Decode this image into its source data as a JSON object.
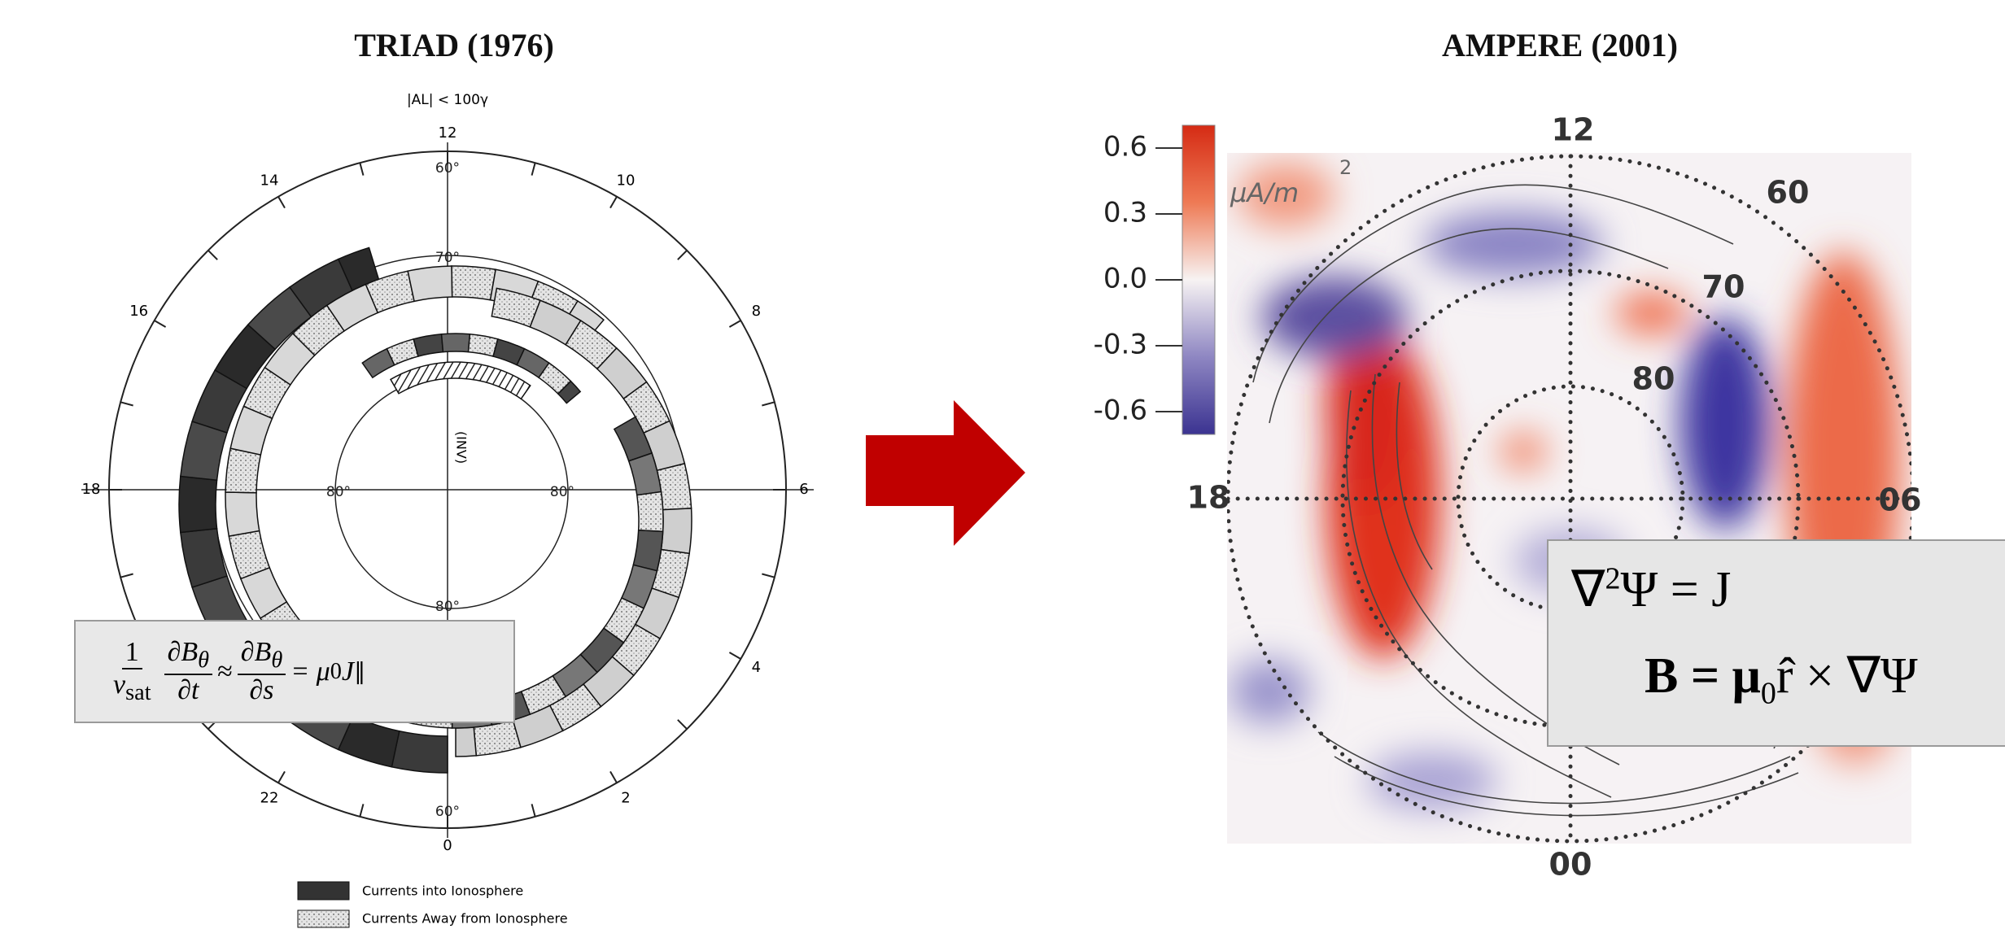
{
  "left_panel": {
    "title": "TRIAD (1976)",
    "subtitle": "|AL| < 100γ",
    "axis_label": "(INV)",
    "hour_labels": [
      "12",
      "14",
      "10",
      "16",
      "8",
      "18",
      "6",
      "22",
      "2",
      "4",
      "0"
    ],
    "latitude_labels": [
      "60°",
      "70°",
      "80°",
      "80°",
      "80°",
      "60°"
    ],
    "legend": [
      "Currents into Ionosphere",
      "Currents Away from Ionosphere"
    ],
    "equation": {
      "fraction_1": {
        "numerator": "1",
        "denominator": "v",
        "denominator_sub": "sat"
      },
      "fraction_2": {
        "numerator": "∂B",
        "numerator_sub": "θ",
        "denominator": "∂t"
      },
      "operator_1": "≈",
      "fraction_3": {
        "numerator": "∂B",
        "numerator_sub": "θ",
        "denominator": "∂s"
      },
      "rhs": "= μ",
      "rhs_sub_1": "0",
      "rhs_2": "J",
      "rhs_sub_2": "∥"
    }
  },
  "right_panel": {
    "title": "AMPERE (2001)",
    "colorbar_ticks": [
      "0.6",
      "0.3",
      "0.0",
      "-0.3",
      "-0.6"
    ],
    "colorbar_unit": "μA/m",
    "colorbar_unit_exponent": "2",
    "hour_labels": {
      "top": "12",
      "left": "18",
      "right": "06",
      "bottom": "00"
    },
    "latitude_labels": [
      "60",
      "70",
      "80"
    ],
    "equation_1": {
      "base": "∇",
      "sup": "2",
      "rest": "Ψ = J"
    },
    "equation_2": {
      "base": "B = μ",
      "sub": "0",
      "rest": "r̂ × ∇Ψ"
    }
  }
}
